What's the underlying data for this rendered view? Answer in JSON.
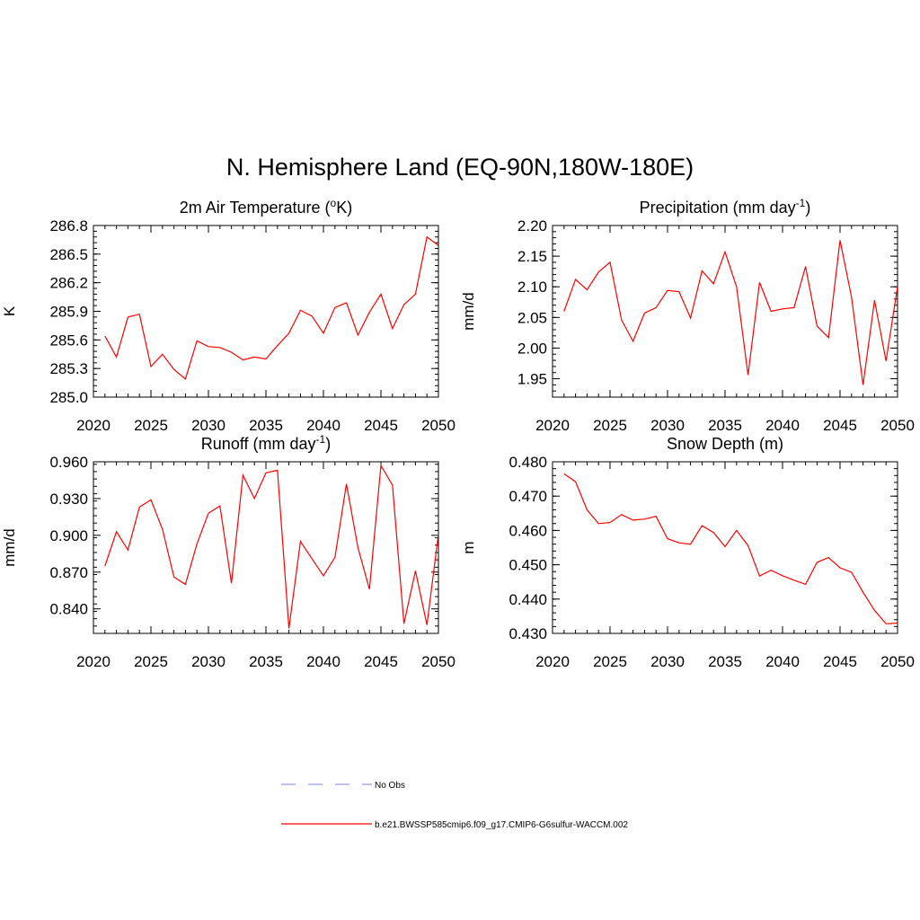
{
  "title": "N. Hemisphere Land (EQ-90N,180W-180E)",
  "colors": {
    "model_line": "#ff0000",
    "obs_line": "#9999ee",
    "axis": "#000000"
  },
  "legend": [
    {
      "label": "No Obs",
      "style": "dashed",
      "color": "#9999ee"
    },
    {
      "label": "b.e21.BWSSP585cmip6.f09_g17.CMIP6-G6sulfur-WACCM.002",
      "style": "solid",
      "color": "#ff0000"
    }
  ],
  "chart_data": [
    {
      "type": "line",
      "title": "2m Air Temperature (",
      "title_sup": "o",
      "title_suffix": "K)",
      "ylabel": "K",
      "xlim": [
        2020,
        2050
      ],
      "ylim": [
        285.0,
        286.8
      ],
      "xticks": [
        2020,
        2025,
        2030,
        2035,
        2040,
        2045,
        2050
      ],
      "yticks": [
        285.0,
        285.3,
        285.6,
        285.9,
        286.2,
        286.5,
        286.8
      ],
      "ytick_labels": [
        "285.0",
        "285.3",
        "285.6",
        "285.9",
        "286.2",
        "286.5",
        "286.8"
      ],
      "x": [
        2021,
        2022,
        2023,
        2024,
        2025,
        2026,
        2027,
        2028,
        2029,
        2030,
        2031,
        2032,
        2033,
        2034,
        2035,
        2036,
        2037,
        2038,
        2039,
        2040,
        2041,
        2042,
        2043,
        2044,
        2045,
        2046,
        2047,
        2048,
        2049,
        2050
      ],
      "y": [
        285.64,
        285.42,
        285.84,
        285.87,
        285.32,
        285.45,
        285.29,
        285.19,
        285.59,
        285.53,
        285.52,
        285.47,
        285.39,
        285.42,
        285.4,
        285.54,
        285.67,
        285.91,
        285.85,
        285.67,
        285.94,
        285.99,
        285.65,
        285.89,
        286.08,
        285.72,
        285.97,
        286.08,
        286.68,
        286.59
      ]
    },
    {
      "type": "line",
      "title": "Precipitation (mm day",
      "title_sup": "-1",
      "title_suffix": ")",
      "ylabel": "mm/d",
      "xlim": [
        2020,
        2050
      ],
      "ylim": [
        1.92,
        2.2
      ],
      "xticks": [
        2020,
        2025,
        2030,
        2035,
        2040,
        2045,
        2050
      ],
      "yticks": [
        1.95,
        2.0,
        2.05,
        2.1,
        2.15,
        2.2
      ],
      "ytick_labels": [
        "1.95",
        "2.00",
        "2.05",
        "2.10",
        "2.15",
        "2.20"
      ],
      "x": [
        2021,
        2022,
        2023,
        2024,
        2025,
        2026,
        2027,
        2028,
        2029,
        2030,
        2031,
        2032,
        2033,
        2034,
        2035,
        2036,
        2037,
        2038,
        2039,
        2040,
        2041,
        2042,
        2043,
        2044,
        2045,
        2046,
        2047,
        2048,
        2049,
        2050
      ],
      "y": [
        2.06,
        2.112,
        2.095,
        2.124,
        2.14,
        2.046,
        2.011,
        2.057,
        2.066,
        2.094,
        2.092,
        2.049,
        2.126,
        2.105,
        2.157,
        2.1,
        1.956,
        2.107,
        2.06,
        2.064,
        2.066,
        2.133,
        2.036,
        2.017,
        2.176,
        2.083,
        1.94,
        2.078,
        1.979,
        2.1
      ]
    },
    {
      "type": "line",
      "title": "Runoff (mm day",
      "title_sup": "-1",
      "title_suffix": ")",
      "ylabel": "mm/d",
      "xlim": [
        2020,
        2050
      ],
      "ylim": [
        0.82,
        0.96
      ],
      "xticks": [
        2020,
        2025,
        2030,
        2035,
        2040,
        2045,
        2050
      ],
      "yticks": [
        0.84,
        0.87,
        0.9,
        0.93,
        0.96
      ],
      "ytick_labels": [
        "0.840",
        "0.870",
        "0.900",
        "0.930",
        "0.960"
      ],
      "x": [
        2021,
        2022,
        2023,
        2024,
        2025,
        2026,
        2027,
        2028,
        2029,
        2030,
        2031,
        2032,
        2033,
        2034,
        2035,
        2036,
        2037,
        2038,
        2039,
        2040,
        2041,
        2042,
        2043,
        2044,
        2045,
        2046,
        2047,
        2048,
        2049,
        2050
      ],
      "y": [
        0.875,
        0.903,
        0.888,
        0.923,
        0.929,
        0.905,
        0.866,
        0.86,
        0.893,
        0.918,
        0.924,
        0.861,
        0.949,
        0.93,
        0.951,
        0.953,
        0.824,
        0.895,
        0.881,
        0.867,
        0.882,
        0.942,
        0.89,
        0.856,
        0.957,
        0.941,
        0.828,
        0.871,
        0.827,
        0.901
      ]
    },
    {
      "type": "line",
      "title": "Snow Depth (m)",
      "title_sup": "",
      "title_suffix": "",
      "ylabel": "m",
      "xlim": [
        2020,
        2050
      ],
      "ylim": [
        0.43,
        0.48
      ],
      "xticks": [
        2020,
        2025,
        2030,
        2035,
        2040,
        2045,
        2050
      ],
      "yticks": [
        0.43,
        0.44,
        0.45,
        0.46,
        0.47,
        0.48
      ],
      "ytick_labels": [
        "0.430",
        "0.440",
        "0.450",
        "0.460",
        "0.470",
        "0.480"
      ],
      "x": [
        2021,
        2022,
        2023,
        2024,
        2025,
        2026,
        2027,
        2028,
        2029,
        2030,
        2031,
        2032,
        2033,
        2034,
        2035,
        2036,
        2037,
        2038,
        2039,
        2040,
        2041,
        2042,
        2043,
        2044,
        2045,
        2046,
        2047,
        2048,
        2049,
        2050
      ],
      "y": [
        0.4765,
        0.4742,
        0.466,
        0.462,
        0.4623,
        0.4646,
        0.463,
        0.4633,
        0.4641,
        0.4576,
        0.4564,
        0.456,
        0.4614,
        0.4594,
        0.4553,
        0.46,
        0.4556,
        0.4467,
        0.4484,
        0.4468,
        0.4455,
        0.4443,
        0.4507,
        0.4521,
        0.4491,
        0.4478,
        0.442,
        0.4367,
        0.4328,
        0.433
      ]
    }
  ]
}
